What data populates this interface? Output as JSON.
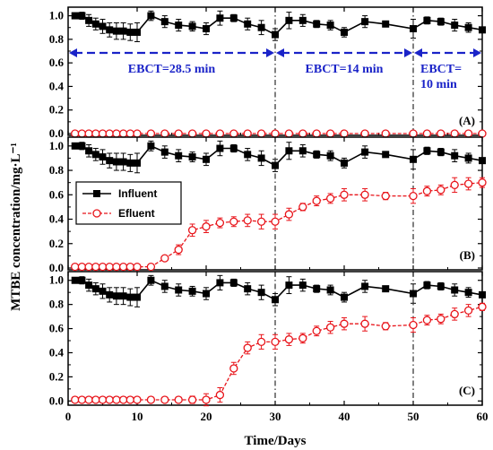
{
  "chart_data": {
    "type": "line",
    "xlabel": "Time/Days",
    "ylabel": "MTBE concentration/mg·L⁻¹",
    "xlim": [
      0,
      60
    ],
    "xticks": [
      0,
      10,
      20,
      30,
      40,
      50,
      60
    ],
    "grid": false,
    "legend": {
      "position": "upper-left of panel B",
      "entries": [
        "Influent",
        "Efluent"
      ]
    },
    "colors": {
      "influent": "#000000",
      "efluent": "#e8141a",
      "ebct": "#1a23c8"
    },
    "ebct_boundaries_days": [
      30,
      50
    ],
    "ebct_labels": [
      "EBCT=28.5 min",
      "EBCT=14 min",
      "EBCT=",
      "10 min"
    ],
    "panels": [
      {
        "label": "(A)",
        "ylim": [
          0.0,
          1.05
        ],
        "yticks": [
          "0.0",
          "0.2",
          "0.4",
          "0.6",
          "0.8",
          "1.0"
        ],
        "series": [
          {
            "name": "Influent",
            "x": [
              1,
              2,
              3,
              4,
              5,
              6,
              7,
              8,
              9,
              10,
              12,
              14,
              16,
              18,
              20,
              22,
              24,
              26,
              28,
              30,
              32,
              34,
              36,
              38,
              40,
              43,
              46,
              50,
              52,
              54,
              56,
              58,
              60
            ],
            "y": [
              1.0,
              1.0,
              0.96,
              0.93,
              0.91,
              0.88,
              0.87,
              0.87,
              0.86,
              0.86,
              1.0,
              0.95,
              0.92,
              0.91,
              0.89,
              0.98,
              0.98,
              0.93,
              0.9,
              0.84,
              0.96,
              0.96,
              0.93,
              0.92,
              0.86,
              0.95,
              0.93,
              0.89,
              0.96,
              0.95,
              0.92,
              0.9,
              0.88
            ],
            "err": [
              0.02,
              0.03,
              0.05,
              0.05,
              0.06,
              0.06,
              0.07,
              0.07,
              0.07,
              0.08,
              0.04,
              0.05,
              0.05,
              0.04,
              0.05,
              0.06,
              0.03,
              0.05,
              0.06,
              0.05,
              0.07,
              0.05,
              0.03,
              0.04,
              0.04,
              0.05,
              0.02,
              0.08,
              0.03,
              0.03,
              0.05,
              0.04,
              0.02
            ]
          },
          {
            "name": "Efluent",
            "x": [
              1,
              2,
              3,
              4,
              5,
              6,
              7,
              8,
              9,
              10,
              12,
              14,
              16,
              18,
              20,
              22,
              24,
              26,
              28,
              30,
              32,
              34,
              36,
              38,
              40,
              43,
              46,
              50,
              52,
              54,
              56,
              58,
              60
            ],
            "y": [
              0,
              0,
              0,
              0,
              0,
              0,
              0,
              0,
              0,
              0,
              0,
              0,
              0,
              0,
              0,
              0,
              0,
              0,
              0,
              0,
              0,
              0,
              0,
              0,
              0,
              0,
              0,
              0,
              0,
              0,
              0,
              0,
              0
            ],
            "err": []
          }
        ]
      },
      {
        "label": "(B)",
        "ylim": [
          0.0,
          1.05
        ],
        "yticks": [
          "0.0",
          "0.2",
          "0.4",
          "0.6",
          "0.8",
          "1.0"
        ],
        "series": [
          {
            "name": "Influent",
            "x": [
              1,
              2,
              3,
              4,
              5,
              6,
              7,
              8,
              9,
              10,
              12,
              14,
              16,
              18,
              20,
              22,
              24,
              26,
              28,
              30,
              32,
              34,
              36,
              38,
              40,
              43,
              46,
              50,
              52,
              54,
              56,
              58,
              60
            ],
            "y": [
              1.0,
              1.0,
              0.96,
              0.93,
              0.91,
              0.88,
              0.87,
              0.87,
              0.86,
              0.86,
              1.0,
              0.95,
              0.92,
              0.91,
              0.89,
              0.98,
              0.98,
              0.93,
              0.9,
              0.84,
              0.96,
              0.96,
              0.93,
              0.92,
              0.86,
              0.95,
              0.93,
              0.89,
              0.96,
              0.95,
              0.92,
              0.9,
              0.88
            ],
            "err": [
              0.02,
              0.03,
              0.05,
              0.05,
              0.06,
              0.06,
              0.07,
              0.07,
              0.07,
              0.08,
              0.04,
              0.05,
              0.05,
              0.04,
              0.05,
              0.06,
              0.03,
              0.05,
              0.06,
              0.05,
              0.07,
              0.05,
              0.03,
              0.04,
              0.04,
              0.05,
              0.02,
              0.08,
              0.03,
              0.03,
              0.05,
              0.04,
              0.02
            ]
          },
          {
            "name": "Efluent",
            "x": [
              1,
              2,
              3,
              4,
              5,
              6,
              7,
              8,
              9,
              10,
              12,
              14,
              16,
              18,
              20,
              22,
              24,
              26,
              28,
              30,
              32,
              34,
              36,
              38,
              40,
              43,
              46,
              50,
              52,
              54,
              56,
              58,
              60
            ],
            "y": [
              0.01,
              0.01,
              0.01,
              0.01,
              0.01,
              0.01,
              0.01,
              0.01,
              0.01,
              0.01,
              0.01,
              0.08,
              0.15,
              0.31,
              0.34,
              0.37,
              0.38,
              0.39,
              0.38,
              0.38,
              0.44,
              0.5,
              0.55,
              0.57,
              0.6,
              0.6,
              0.59,
              0.59,
              0.63,
              0.64,
              0.68,
              0.69,
              0.7
            ],
            "err": [
              0,
              0,
              0,
              0,
              0,
              0,
              0,
              0,
              0,
              0,
              0,
              0.02,
              0.04,
              0.05,
              0.05,
              0.04,
              0.04,
              0.05,
              0.06,
              0.06,
              0.05,
              0.03,
              0.04,
              0.04,
              0.05,
              0.05,
              0.03,
              0.06,
              0.04,
              0.04,
              0.06,
              0.05,
              0.04
            ]
          }
        ]
      },
      {
        "label": "(C)",
        "ylim": [
          -0.02,
          1.05
        ],
        "yticks": [
          "0.0",
          "0.2",
          "0.4",
          "0.6",
          "0.8",
          "1.0"
        ],
        "series": [
          {
            "name": "Influent",
            "x": [
              1,
              2,
              3,
              4,
              5,
              6,
              7,
              8,
              9,
              10,
              12,
              14,
              16,
              18,
              20,
              22,
              24,
              26,
              28,
              30,
              32,
              34,
              36,
              38,
              40,
              43,
              46,
              50,
              52,
              54,
              56,
              58,
              60
            ],
            "y": [
              1.0,
              1.0,
              0.96,
              0.93,
              0.91,
              0.88,
              0.87,
              0.87,
              0.86,
              0.86,
              1.0,
              0.95,
              0.92,
              0.91,
              0.89,
              0.98,
              0.98,
              0.93,
              0.9,
              0.84,
              0.96,
              0.96,
              0.93,
              0.92,
              0.86,
              0.95,
              0.93,
              0.89,
              0.96,
              0.95,
              0.92,
              0.9,
              0.88
            ],
            "err": [
              0.02,
              0.03,
              0.05,
              0.05,
              0.06,
              0.06,
              0.07,
              0.07,
              0.07,
              0.08,
              0.04,
              0.05,
              0.05,
              0.04,
              0.05,
              0.06,
              0.03,
              0.05,
              0.06,
              0.05,
              0.07,
              0.05,
              0.03,
              0.04,
              0.04,
              0.05,
              0.02,
              0.08,
              0.03,
              0.03,
              0.05,
              0.04,
              0.02
            ]
          },
          {
            "name": "Efluent",
            "x": [
              1,
              2,
              3,
              4,
              5,
              6,
              7,
              8,
              9,
              10,
              12,
              14,
              16,
              18,
              20,
              22,
              24,
              26,
              28,
              30,
              32,
              34,
              36,
              38,
              40,
              43,
              46,
              50,
              52,
              54,
              56,
              58,
              60
            ],
            "y": [
              0.01,
              0.01,
              0.01,
              0.01,
              0.01,
              0.01,
              0.01,
              0.01,
              0.01,
              0.01,
              0.01,
              0.01,
              0.01,
              0.01,
              0.01,
              0.05,
              0.27,
              0.44,
              0.49,
              0.49,
              0.51,
              0.52,
              0.58,
              0.61,
              0.64,
              0.64,
              0.62,
              0.63,
              0.67,
              0.68,
              0.72,
              0.75,
              0.78
            ],
            "err": [
              0,
              0,
              0,
              0,
              0,
              0,
              0,
              0,
              0,
              0,
              0,
              0,
              0,
              0.03,
              0.05,
              0.06,
              0.05,
              0.05,
              0.06,
              0.06,
              0.05,
              0.04,
              0.04,
              0.05,
              0.05,
              0.06,
              0.03,
              0.06,
              0.04,
              0.04,
              0.05,
              0.05,
              0.03
            ]
          }
        ]
      }
    ]
  }
}
